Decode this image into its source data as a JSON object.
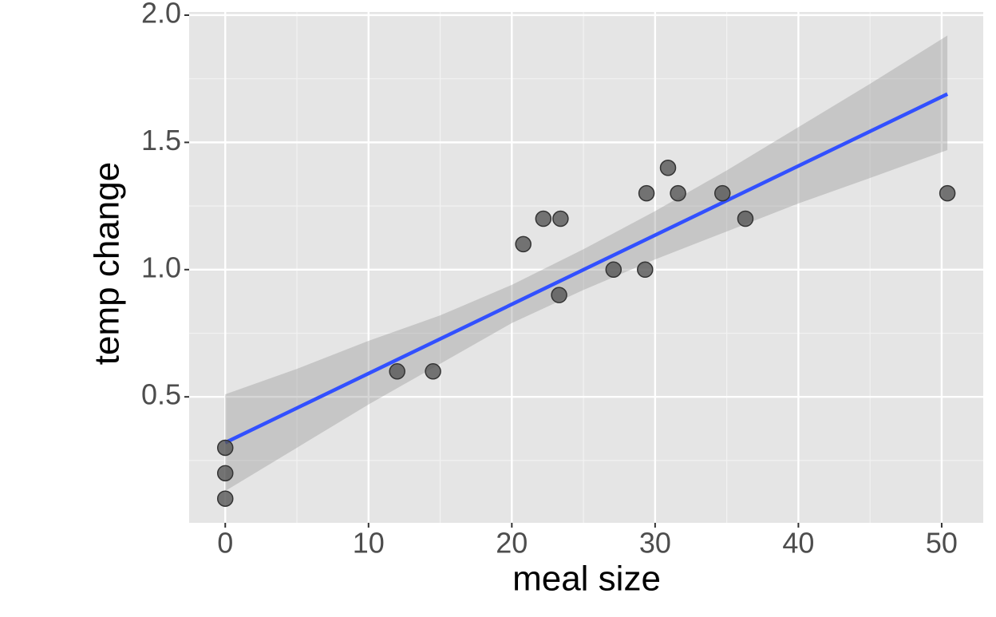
{
  "chart_data": {
    "type": "scatter",
    "x_label": "meal size",
    "y_label": "temp change",
    "x": [
      0,
      0,
      0,
      12,
      14.5,
      20.8,
      22.2,
      23.4,
      23.3,
      27.1,
      29.3,
      29.4,
      30.9,
      31.6,
      34.7,
      36.3,
      50.4
    ],
    "y": [
      0.3,
      0.2,
      0.1,
      0.6,
      0.6,
      1.1,
      1.2,
      1.2,
      0.9,
      1.0,
      1.0,
      1.3,
      1.4,
      1.3,
      1.3,
      1.2,
      1.3
    ],
    "point_color": "#555555",
    "fit": {
      "x": [
        0,
        50.4
      ],
      "y": [
        0.32,
        1.69
      ],
      "color": "#3250ff"
    },
    "band": {
      "x": [
        0,
        5,
        10,
        15,
        20,
        25,
        30,
        35,
        40,
        45,
        50.4
      ],
      "lower": [
        0.13,
        0.3,
        0.47,
        0.63,
        0.79,
        0.92,
        1.04,
        1.15,
        1.26,
        1.36,
        1.47
      ],
      "upper": [
        0.51,
        0.61,
        0.72,
        0.82,
        0.94,
        1.08,
        1.23,
        1.39,
        1.56,
        1.73,
        1.92
      ],
      "color": "#999999"
    },
    "xlim": [
      -2.52,
      52.9
    ],
    "ylim": [
      0.005,
      2.0125
    ],
    "xticks": [
      0,
      10,
      20,
      30,
      40,
      50
    ],
    "yticks": [
      {
        "value": 0.5,
        "label": "0.5"
      },
      {
        "value": 1,
        "label": "1.0"
      },
      {
        "value": 1.5,
        "label": "1.5"
      },
      {
        "value": 2,
        "label": "2.0"
      }
    ],
    "xminor": [
      5,
      15,
      25,
      35,
      45
    ],
    "yminor": [
      0.25,
      0.75,
      1.25,
      1.75
    ],
    "grid": true
  }
}
